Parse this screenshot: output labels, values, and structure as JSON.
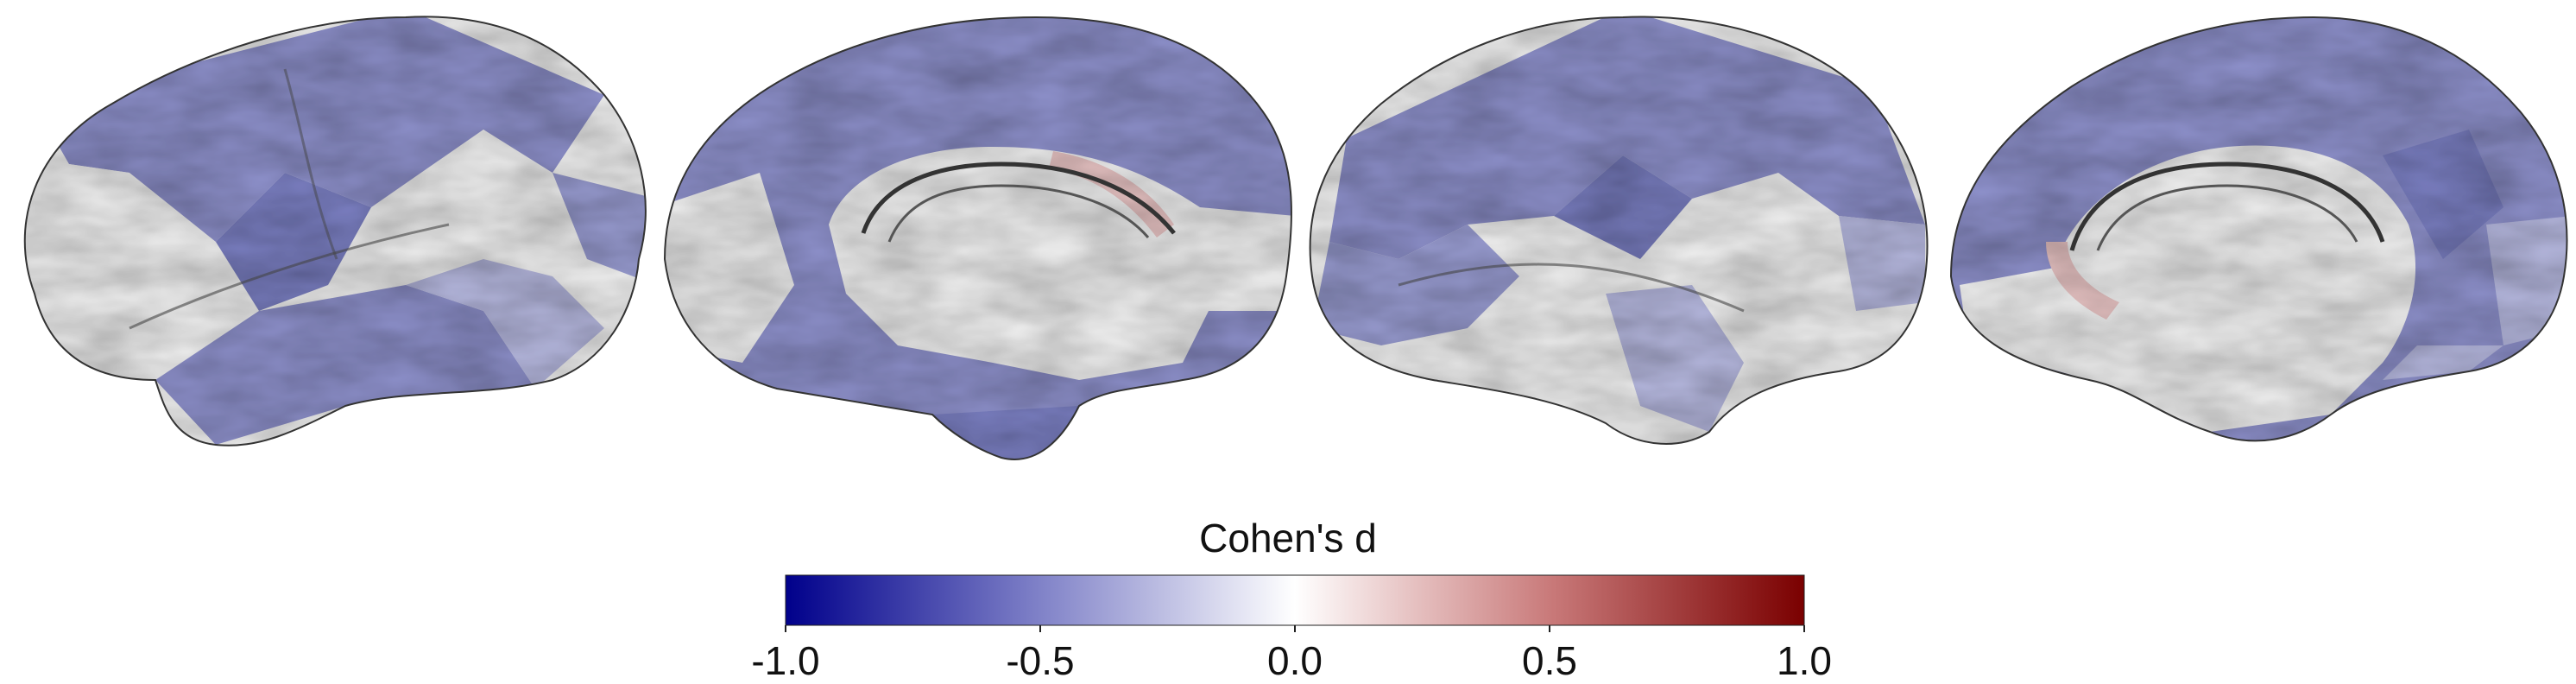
{
  "colorbar": {
    "title": "Cohen's d",
    "colormap": "seismic-like diverging (dark blue - white - dark red)",
    "min": -1.0,
    "max": 1.0,
    "ticks": [
      "-1.0",
      "-0.5",
      "0.0",
      "0.5",
      "1.0"
    ],
    "colors": {
      "low": "#00008b",
      "mid": "#ffffff",
      "high": "#7a0000"
    }
  },
  "views": [
    {
      "hemisphere": "left",
      "view": "lateral"
    },
    {
      "hemisphere": "left",
      "view": "medial"
    },
    {
      "hemisphere": "right",
      "view": "lateral"
    },
    {
      "hemisphere": "right",
      "view": "medial"
    }
  ],
  "colors": {
    "region_blue": "#8f92cc",
    "region_blue_dark": "#7c80c2",
    "region_blue_light": "#b7b9e0",
    "region_white": "#f2f2f2",
    "region_pink": "#e8c4c4",
    "outline": "#333333"
  }
}
